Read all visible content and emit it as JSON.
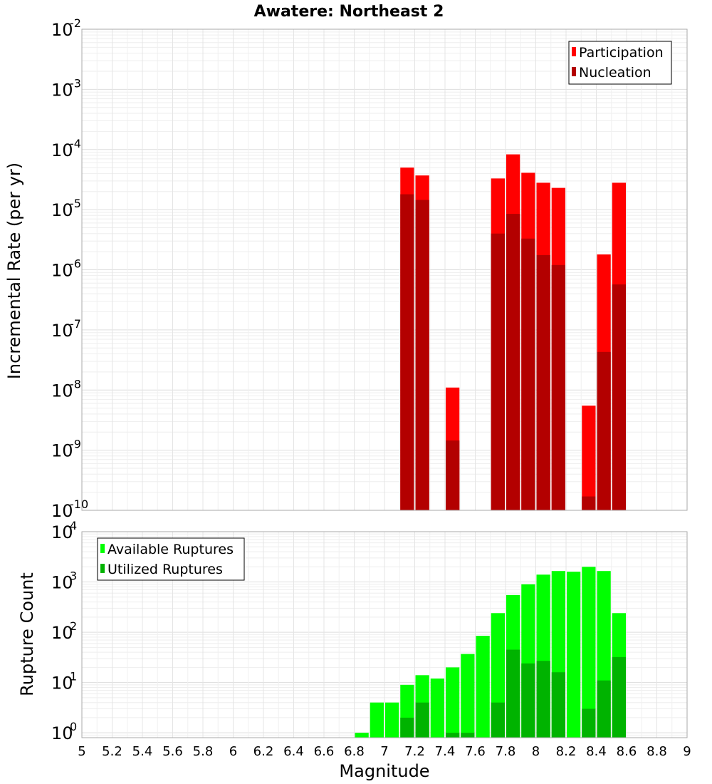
{
  "title": "Awatere: Northeast 2",
  "x_axis_title": "Magnitude",
  "colors": {
    "participation": "#ff0000",
    "nucleation": "#b30000",
    "available": "#00ff00",
    "utilized": "#00b300"
  },
  "chart_data": [
    {
      "type": "bar",
      "name": "rates",
      "ylabel": "Incremental Rate (per yr)",
      "y_scale": "log",
      "ylim": [
        1e-10,
        0.01
      ],
      "xlim": [
        5,
        9
      ],
      "legend_position": "top-right",
      "y_ticks": [
        {
          "base": "10",
          "exp": "-10"
        },
        {
          "base": "10",
          "exp": "-9"
        },
        {
          "base": "10",
          "exp": "-8"
        },
        {
          "base": "10",
          "exp": "-7"
        },
        {
          "base": "10",
          "exp": "-6"
        },
        {
          "base": "10",
          "exp": "-5"
        },
        {
          "base": "10",
          "exp": "-4"
        },
        {
          "base": "10",
          "exp": "-3"
        },
        {
          "base": "10",
          "exp": "-2"
        }
      ],
      "series": [
        {
          "name": "Participation",
          "x": [
            7.15,
            7.25,
            7.45,
            7.75,
            7.85,
            7.95,
            8.05,
            8.15,
            8.35,
            8.45,
            8.55
          ],
          "values": [
            5e-05,
            3.7e-05,
            1.1e-08,
            3.3e-05,
            8.3e-05,
            4.1e-05,
            2.8e-05,
            2.3e-05,
            5.5e-09,
            1.8e-06,
            2.8e-05
          ]
        },
        {
          "name": "Nucleation",
          "x": [
            7.15,
            7.25,
            7.45,
            7.75,
            7.85,
            7.95,
            8.05,
            8.15,
            8.35,
            8.45,
            8.55
          ],
          "values": [
            1.8e-05,
            1.45e-05,
            1.45e-09,
            4e-06,
            8.5e-06,
            3.3e-06,
            1.75e-06,
            1.2e-06,
            1.7e-10,
            4.3e-08,
            5.7e-07
          ]
        }
      ]
    },
    {
      "type": "bar",
      "name": "counts",
      "ylabel": "Rupture Count",
      "y_scale": "log",
      "ylim": [
        0.8,
        10000
      ],
      "xlim": [
        5,
        9
      ],
      "legend_position": "top-left",
      "y_ticks": [
        {
          "value": 1,
          "base": "10",
          "exp": "0"
        },
        {
          "value": 10,
          "base": "10",
          "exp": "1"
        },
        {
          "value": 100,
          "base": "10",
          "exp": "2"
        },
        {
          "value": 1000,
          "base": "10",
          "exp": "3"
        },
        {
          "value": 10000,
          "base": "10",
          "exp": "4"
        }
      ],
      "x_ticks": [
        "5",
        "5.2",
        "5.4",
        "5.6",
        "5.8",
        "6",
        "6.2",
        "6.4",
        "6.6",
        "6.8",
        "7",
        "7.2",
        "7.4",
        "7.6",
        "7.8",
        "8",
        "8.2",
        "8.4",
        "8.6",
        "8.8",
        "9"
      ],
      "series": [
        {
          "name": "Available Ruptures",
          "x": [
            6.85,
            6.95,
            7.05,
            7.15,
            7.25,
            7.35,
            7.45,
            7.55,
            7.65,
            7.75,
            7.85,
            7.95,
            8.05,
            8.15,
            8.25,
            8.35,
            8.45,
            8.55
          ],
          "values": [
            1,
            4,
            4,
            9,
            14,
            12,
            20,
            37,
            85,
            240,
            550,
            900,
            1400,
            1650,
            1600,
            2000,
            1650,
            240
          ]
        },
        {
          "name": "Utilized Ruptures",
          "x": [
            7.15,
            7.25,
            7.45,
            7.55,
            7.75,
            7.85,
            7.95,
            8.05,
            8.15,
            8.35,
            8.45,
            8.55
          ],
          "values": [
            2,
            4,
            1,
            1,
            4,
            45,
            24,
            27,
            16,
            3,
            11,
            32
          ]
        }
      ]
    }
  ]
}
